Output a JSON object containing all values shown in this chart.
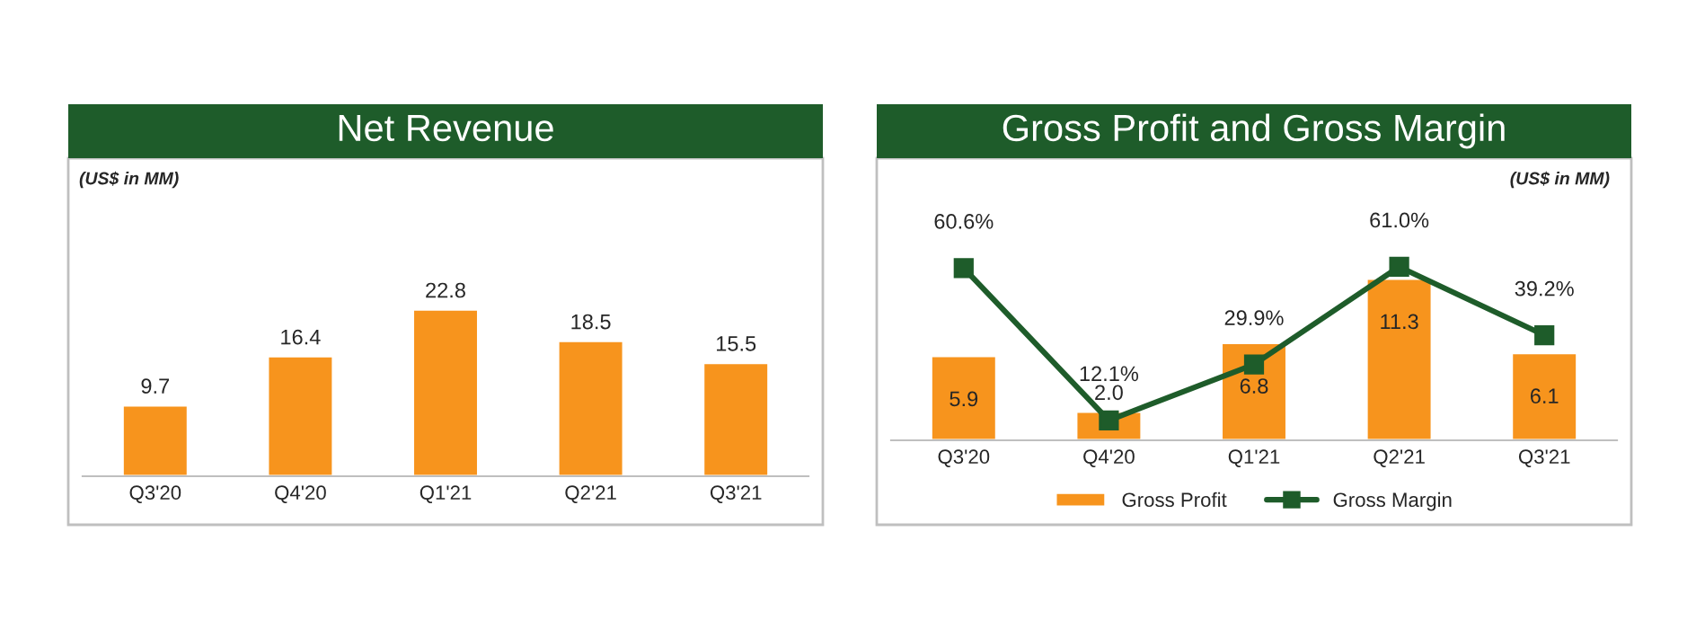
{
  "chart_data": [
    {
      "type": "bar",
      "title": "Net Revenue",
      "annotations": [
        "(US$ in MM)"
      ],
      "categories": [
        "Q3'20",
        "Q4'20",
        "Q1'21",
        "Q2'21",
        "Q3'21"
      ],
      "series": [
        {
          "color": "#f7941d",
          "values": [
            9.7,
            16.4,
            22.8,
            18.5,
            15.5
          ]
        }
      ],
      "data_labels": true,
      "tick_labels": "x",
      "grid": false,
      "legend": false
    },
    {
      "type": "bar",
      "title": "Gross Profit and Gross Margin",
      "annotations": [
        "(US$ in MM)"
      ],
      "categories": [
        "Q3'20",
        "Q4'20",
        "Q1'21",
        "Q2'21",
        "Q3'21"
      ],
      "series": [
        {
          "name": "Gross Profit",
          "color": "#f7941d",
          "values": [
            5.9,
            2.0,
            6.8,
            11.3,
            6.1
          ],
          "value_labels": [
            "5.9",
            "2.0",
            "6.8",
            "11.3",
            "6.1"
          ]
        },
        {
          "name": "Gross Margin",
          "type": "line",
          "axis": "y2",
          "color": "#1e5c2a",
          "values": [
            60.6,
            12.1,
            29.9,
            61.0,
            39.2
          ],
          "value_labels": [
            "60.6%",
            "12.1%",
            "29.9%",
            "61.0%",
            "39.2%"
          ]
        }
      ],
      "data_labels": true,
      "tick_labels": "x",
      "grid": false,
      "legend": "bottom",
      "marker": "square",
      "line_style": "solid"
    }
  ]
}
